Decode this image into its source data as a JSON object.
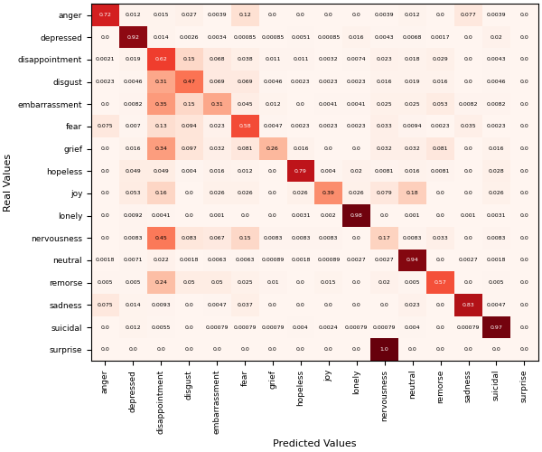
{
  "chart_data": {
    "type": "heatmap",
    "x_label": "Predicted Values",
    "y_label": "Real Values",
    "categories": [
      "anger",
      "depressed",
      "disappointment",
      "disgust",
      "embarrassment",
      "fear",
      "grief",
      "hopeless",
      "joy",
      "lonely",
      "nervousness",
      "neutral",
      "remorse",
      "sadness",
      "suicidal",
      "surprise"
    ],
    "values": [
      [
        0.72,
        0.012,
        0.015,
        0.027,
        0.0039,
        0.12,
        0.0,
        0.0,
        0.0,
        0.0,
        0.0039,
        0.012,
        0.0,
        0.077,
        0.0039,
        0.0
      ],
      [
        0.0,
        0.92,
        0.014,
        0.0026,
        0.0034,
        0.00085,
        0.00085,
        0.0051,
        0.00085,
        0.016,
        0.0043,
        0.0068,
        0.0017,
        0.0,
        0.02,
        0.0
      ],
      [
        0.0021,
        0.019,
        0.62,
        0.15,
        0.068,
        0.038,
        0.011,
        0.011,
        0.0032,
        0.0074,
        0.023,
        0.018,
        0.029,
        0.0,
        0.0043,
        0.0
      ],
      [
        0.0023,
        0.0046,
        0.31,
        0.47,
        0.069,
        0.069,
        0.0046,
        0.0023,
        0.0023,
        0.0023,
        0.016,
        0.019,
        0.016,
        0.0,
        0.0046,
        0.0
      ],
      [
        0.0,
        0.0082,
        0.35,
        0.15,
        0.31,
        0.045,
        0.012,
        0.0,
        0.0041,
        0.0041,
        0.025,
        0.025,
        0.053,
        0.0082,
        0.0082,
        0.0
      ],
      [
        0.075,
        0.007,
        0.13,
        0.094,
        0.023,
        0.58,
        0.0047,
        0.0023,
        0.0023,
        0.0023,
        0.033,
        0.0094,
        0.0023,
        0.035,
        0.0023,
        0.0
      ],
      [
        0.0,
        0.016,
        0.34,
        0.097,
        0.032,
        0.081,
        0.26,
        0.016,
        0.0,
        0.0,
        0.032,
        0.032,
        0.081,
        0.0,
        0.016,
        0.0
      ],
      [
        0.0,
        0.049,
        0.049,
        0.004,
        0.016,
        0.012,
        0.0,
        0.79,
        0.004,
        0.02,
        0.0081,
        0.016,
        0.0081,
        0.0,
        0.028,
        0.0
      ],
      [
        0.0,
        0.053,
        0.16,
        0.0,
        0.026,
        0.026,
        0.0,
        0.026,
        0.39,
        0.026,
        0.079,
        0.18,
        0.0,
        0.0,
        0.026,
        0.0
      ],
      [
        0.0,
        0.0092,
        0.0041,
        0.0,
        0.001,
        0.0,
        0.0,
        0.0031,
        0.002,
        0.98,
        0.0,
        0.001,
        0.0,
        0.001,
        0.0031,
        0.0
      ],
      [
        0.0,
        0.0083,
        0.45,
        0.083,
        0.067,
        0.15,
        0.0083,
        0.0083,
        0.0083,
        0.0,
        0.17,
        0.0083,
        0.033,
        0.0,
        0.0083,
        0.0
      ],
      [
        0.0018,
        0.0071,
        0.022,
        0.0018,
        0.0063,
        0.0063,
        0.00089,
        0.0018,
        0.00089,
        0.0027,
        0.0027,
        0.94,
        0.0,
        0.0027,
        0.0018,
        0.0
      ],
      [
        0.005,
        0.005,
        0.24,
        0.05,
        0.05,
        0.025,
        0.01,
        0.0,
        0.015,
        0.0,
        0.02,
        0.005,
        0.57,
        0.0,
        0.005,
        0.0
      ],
      [
        0.075,
        0.014,
        0.0093,
        0.0,
        0.0047,
        0.037,
        0.0,
        0.0,
        0.0,
        0.0,
        0.0,
        0.023,
        0.0,
        0.83,
        0.0047,
        0.0
      ],
      [
        0.0,
        0.012,
        0.0055,
        0.0,
        0.00079,
        0.00079,
        0.00079,
        0.004,
        0.0024,
        0.00079,
        0.00079,
        0.004,
        0.0,
        0.00079,
        0.97,
        0.0
      ],
      [
        0.0,
        0.0,
        0.0,
        0.0,
        0.0,
        0.0,
        0.0,
        0.0,
        0.0,
        0.0,
        1.0,
        0.0,
        0.0,
        0.0,
        0.0,
        0.0
      ]
    ],
    "value_labels": [
      [
        "0.72",
        "0.012",
        "0.015",
        "0.027",
        "0.0039",
        "0.12",
        "0.0",
        "0.0",
        "0.0",
        "0.0",
        "0.0039",
        "0.012",
        "0.0",
        "0.077",
        "0.0039",
        "0.0"
      ],
      [
        "0.0",
        "0.92",
        "0.014",
        "0.0026",
        "0.0034",
        "0.00085",
        "0.00085",
        "0.0051",
        "0.00085",
        "0.016",
        "0.0043",
        "0.0068",
        "0.0017",
        "0.0",
        "0.02",
        "0.0"
      ],
      [
        "0.0021",
        "0.019",
        "0.62",
        "0.15",
        "0.068",
        "0.038",
        "0.011",
        "0.011",
        "0.0032",
        "0.0074",
        "0.023",
        "0.018",
        "0.029",
        "0.0",
        "0.0043",
        "0.0"
      ],
      [
        "0.0023",
        "0.0046",
        "0.31",
        "0.47",
        "0.069",
        "0.069",
        "0.0046",
        "0.0023",
        "0.0023",
        "0.0023",
        "0.016",
        "0.019",
        "0.016",
        "0.0",
        "0.0046",
        "0.0"
      ],
      [
        "0.0",
        "0.0082",
        "0.35",
        "0.15",
        "0.31",
        "0.045",
        "0.012",
        "0.0",
        "0.0041",
        "0.0041",
        "0.025",
        "0.025",
        "0.053",
        "0.0082",
        "0.0082",
        "0.0"
      ],
      [
        "0.075",
        "0.007",
        "0.13",
        "0.094",
        "0.023",
        "0.58",
        "0.0047",
        "0.0023",
        "0.0023",
        "0.0023",
        "0.033",
        "0.0094",
        "0.0023",
        "0.035",
        "0.0023",
        "0.0"
      ],
      [
        "0.0",
        "0.016",
        "0.34",
        "0.097",
        "0.032",
        "0.081",
        "0.26",
        "0.016",
        "0.0",
        "0.0",
        "0.032",
        "0.032",
        "0.081",
        "0.0",
        "0.016",
        "0.0"
      ],
      [
        "0.0",
        "0.049",
        "0.049",
        "0.004",
        "0.016",
        "0.012",
        "0.0",
        "0.79",
        "0.004",
        "0.02",
        "0.0081",
        "0.016",
        "0.0081",
        "0.0",
        "0.028",
        "0.0"
      ],
      [
        "0.0",
        "0.053",
        "0.16",
        "0.0",
        "0.026",
        "0.026",
        "0.0",
        "0.026",
        "0.39",
        "0.026",
        "0.079",
        "0.18",
        "0.0",
        "0.0",
        "0.026",
        "0.0"
      ],
      [
        "0.0",
        "0.0092",
        "0.0041",
        "0.0",
        "0.001",
        "0.0",
        "0.0",
        "0.0031",
        "0.002",
        "0.98",
        "0.0",
        "0.001",
        "0.0",
        "0.001",
        "0.0031",
        "0.0"
      ],
      [
        "0.0",
        "0.0083",
        "0.45",
        "0.083",
        "0.067",
        "0.15",
        "0.0083",
        "0.0083",
        "0.0083",
        "0.0",
        "0.17",
        "0.0083",
        "0.033",
        "0.0",
        "0.0083",
        "0.0"
      ],
      [
        "0.0018",
        "0.0071",
        "0.022",
        "0.0018",
        "0.0063",
        "0.0063",
        "0.00089",
        "0.0018",
        "0.00089",
        "0.0027",
        "0.0027",
        "0.94",
        "0.0",
        "0.0027",
        "0.0018",
        "0.0"
      ],
      [
        "0.005",
        "0.005",
        "0.24",
        "0.05",
        "0.05",
        "0.025",
        "0.01",
        "0.0",
        "0.015",
        "0.0",
        "0.02",
        "0.005",
        "0.57",
        "0.0",
        "0.005",
        "0.0"
      ],
      [
        "0.075",
        "0.014",
        "0.0093",
        "0.0",
        "0.0047",
        "0.037",
        "0.0",
        "0.0",
        "0.0",
        "0.0",
        "0.0",
        "0.023",
        "0.0",
        "0.83",
        "0.0047",
        "0.0"
      ],
      [
        "0.0",
        "0.012",
        "0.0055",
        "0.0",
        "0.00079",
        "0.00079",
        "0.00079",
        "0.004",
        "0.0024",
        "0.00079",
        "0.00079",
        "0.004",
        "0.0",
        "0.00079",
        "0.97",
        "0.0"
      ],
      [
        "0.0",
        "0.0",
        "0.0",
        "0.0",
        "0.0",
        "0.0",
        "0.0",
        "0.0",
        "0.0",
        "0.0",
        "1.0",
        "0.0",
        "0.0",
        "0.0",
        "0.0",
        "0.0"
      ]
    ],
    "data_labels": true,
    "color": "Reds",
    "clim": [
      0.0,
      1.0
    ],
    "grid": false
  }
}
